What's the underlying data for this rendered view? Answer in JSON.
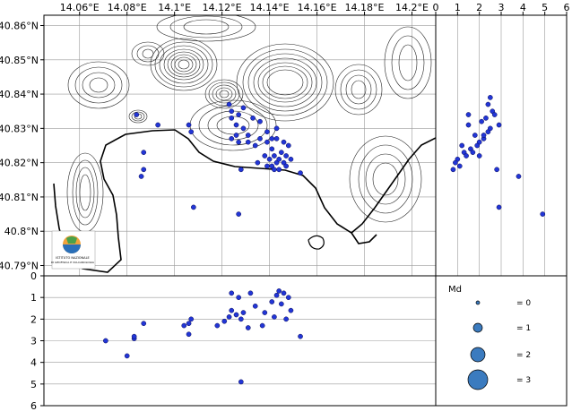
{
  "colors": {
    "marker_fill": "#2236d6",
    "marker_edge": "#0a0a55",
    "legend_fill": "#3b7bbf",
    "grid": "#9a9a9a",
    "contour": "#222222",
    "frame": "#000000"
  },
  "logo": {
    "line1": "ISTITUTO NAZIONALE",
    "line2": "DI GEOFISICA E VULCANOLOGIA"
  },
  "chart_data": [
    {
      "id": "map",
      "type": "scatter",
      "grid": true,
      "x_ticks": [
        "14.06°E",
        "14.08°E",
        "14.1°E",
        "14.12°E",
        "14.14°E",
        "14.16°E",
        "14.18°E",
        "14.2°E"
      ],
      "x_tick_values": [
        14.06,
        14.08,
        14.1,
        14.12,
        14.14,
        14.16,
        14.18,
        14.2
      ],
      "y_ticks": [
        "40.86°N",
        "40.85°N",
        "40.84°N",
        "40.83°N",
        "40.82°N",
        "40.81°N",
        "40.8°N",
        "40.79°N"
      ],
      "y_tick_values": [
        40.86,
        40.85,
        40.84,
        40.83,
        40.82,
        40.81,
        40.8,
        40.79
      ],
      "xlim": [
        14.045,
        14.21
      ],
      "ylim": [
        40.787,
        40.863
      ],
      "points": [
        {
          "lon": 14.084,
          "lat": 40.834
        },
        {
          "lon": 14.093,
          "lat": 40.831
        },
        {
          "lon": 14.087,
          "lat": 40.823
        },
        {
          "lon": 14.087,
          "lat": 40.818
        },
        {
          "lon": 14.086,
          "lat": 40.816
        },
        {
          "lon": 14.106,
          "lat": 40.831
        },
        {
          "lon": 14.107,
          "lat": 40.829
        },
        {
          "lon": 14.108,
          "lat": 40.807
        },
        {
          "lon": 14.123,
          "lat": 40.837
        },
        {
          "lon": 14.124,
          "lat": 40.835
        },
        {
          "lon": 14.124,
          "lat": 40.833
        },
        {
          "lon": 14.127,
          "lat": 40.834
        },
        {
          "lon": 14.126,
          "lat": 40.831
        },
        {
          "lon": 14.129,
          "lat": 40.83
        },
        {
          "lon": 14.126,
          "lat": 40.828
        },
        {
          "lon": 14.124,
          "lat": 40.827
        },
        {
          "lon": 14.127,
          "lat": 40.826
        },
        {
          "lon": 14.131,
          "lat": 40.828
        },
        {
          "lon": 14.133,
          "lat": 40.833
        },
        {
          "lon": 14.136,
          "lat": 40.832
        },
        {
          "lon": 14.129,
          "lat": 40.836
        },
        {
          "lon": 14.131,
          "lat": 40.826
        },
        {
          "lon": 14.134,
          "lat": 40.825
        },
        {
          "lon": 14.128,
          "lat": 40.818
        },
        {
          "lon": 14.136,
          "lat": 40.827
        },
        {
          "lon": 14.139,
          "lat": 40.829
        },
        {
          "lon": 14.139,
          "lat": 40.826
        },
        {
          "lon": 14.141,
          "lat": 40.824
        },
        {
          "lon": 14.138,
          "lat": 40.822
        },
        {
          "lon": 14.14,
          "lat": 40.821
        },
        {
          "lon": 14.142,
          "lat": 40.822
        },
        {
          "lon": 14.143,
          "lat": 40.82
        },
        {
          "lon": 14.141,
          "lat": 40.819
        },
        {
          "lon": 14.144,
          "lat": 40.818
        },
        {
          "lon": 14.146,
          "lat": 40.82
        },
        {
          "lon": 14.147,
          "lat": 40.822
        },
        {
          "lon": 14.145,
          "lat": 40.823
        },
        {
          "lon": 14.146,
          "lat": 40.826
        },
        {
          "lon": 14.143,
          "lat": 40.827
        },
        {
          "lon": 14.148,
          "lat": 40.825
        },
        {
          "lon": 14.149,
          "lat": 40.821
        },
        {
          "lon": 14.147,
          "lat": 40.819
        },
        {
          "lon": 14.142,
          "lat": 40.818
        },
        {
          "lon": 14.139,
          "lat": 40.819
        },
        {
          "lon": 14.144,
          "lat": 40.821
        },
        {
          "lon": 14.143,
          "lat": 40.83
        },
        {
          "lon": 14.141,
          "lat": 40.827
        },
        {
          "lon": 14.153,
          "lat": 40.817
        },
        {
          "lon": 14.135,
          "lat": 40.82
        },
        {
          "lon": 14.127,
          "lat": 40.805
        }
      ]
    },
    {
      "id": "lat-depth",
      "type": "scatter",
      "x_label_ticks": [
        "0",
        "1",
        "2",
        "3",
        "4",
        "5",
        "6"
      ],
      "x_tick_values": [
        0,
        1,
        2,
        3,
        4,
        5,
        6
      ],
      "xlim": [
        0,
        6
      ],
      "ylim": [
        40.787,
        40.863
      ],
      "grid": true,
      "points": [
        {
          "depth": 1.5,
          "lat": 40.834
        },
        {
          "depth": 1.5,
          "lat": 40.831
        },
        {
          "depth": 1.8,
          "lat": 40.828
        },
        {
          "depth": 1.2,
          "lat": 40.825
        },
        {
          "depth": 1.3,
          "lat": 40.823
        },
        {
          "depth": 1.0,
          "lat": 40.821
        },
        {
          "depth": 0.9,
          "lat": 40.82
        },
        {
          "depth": 1.1,
          "lat": 40.819
        },
        {
          "depth": 0.8,
          "lat": 40.818
        },
        {
          "depth": 1.4,
          "lat": 40.822
        },
        {
          "depth": 1.6,
          "lat": 40.824
        },
        {
          "depth": 2.0,
          "lat": 40.826
        },
        {
          "depth": 2.2,
          "lat": 40.827
        },
        {
          "depth": 2.4,
          "lat": 40.829
        },
        {
          "depth": 2.5,
          "lat": 40.83
        },
        {
          "depth": 2.1,
          "lat": 40.832
        },
        {
          "depth": 2.3,
          "lat": 40.833
        },
        {
          "depth": 2.6,
          "lat": 40.835
        },
        {
          "depth": 2.7,
          "lat": 40.834
        },
        {
          "depth": 2.4,
          "lat": 40.837
        },
        {
          "depth": 2.5,
          "lat": 40.839
        },
        {
          "depth": 1.9,
          "lat": 40.825
        },
        {
          "depth": 1.7,
          "lat": 40.823
        },
        {
          "depth": 2.2,
          "lat": 40.828
        },
        {
          "depth": 2.0,
          "lat": 40.822
        },
        {
          "depth": 2.9,
          "lat": 40.831
        },
        {
          "depth": 2.8,
          "lat": 40.818
        },
        {
          "depth": 3.8,
          "lat": 40.816
        },
        {
          "depth": 2.9,
          "lat": 40.807
        },
        {
          "depth": 4.9,
          "lat": 40.805
        }
      ]
    },
    {
      "id": "depth-lon",
      "type": "scatter",
      "y_ticks": [
        "0",
        "1",
        "2",
        "3",
        "4",
        "5",
        "6"
      ],
      "y_tick_values": [
        0,
        1,
        2,
        3,
        4,
        5,
        6
      ],
      "ylim": [
        0,
        6
      ],
      "xlim": [
        14.045,
        14.21
      ],
      "grid": true,
      "points": [
        {
          "lon": 14.071,
          "depth": 3.0
        },
        {
          "lon": 14.08,
          "depth": 3.7
        },
        {
          "lon": 14.083,
          "depth": 2.9
        },
        {
          "lon": 14.083,
          "depth": 2.8
        },
        {
          "lon": 14.087,
          "depth": 2.2
        },
        {
          "lon": 14.104,
          "depth": 2.3
        },
        {
          "lon": 14.106,
          "depth": 2.2
        },
        {
          "lon": 14.107,
          "depth": 2.0
        },
        {
          "lon": 14.106,
          "depth": 2.7
        },
        {
          "lon": 14.118,
          "depth": 2.3
        },
        {
          "lon": 14.121,
          "depth": 2.1
        },
        {
          "lon": 14.123,
          "depth": 1.9
        },
        {
          "lon": 14.124,
          "depth": 1.6
        },
        {
          "lon": 14.126,
          "depth": 1.8
        },
        {
          "lon": 14.128,
          "depth": 2.0
        },
        {
          "lon": 14.124,
          "depth": 0.8
        },
        {
          "lon": 14.127,
          "depth": 1.0
        },
        {
          "lon": 14.129,
          "depth": 1.7
        },
        {
          "lon": 14.131,
          "depth": 2.4
        },
        {
          "lon": 14.134,
          "depth": 1.4
        },
        {
          "lon": 14.132,
          "depth": 0.8
        },
        {
          "lon": 14.138,
          "depth": 1.7
        },
        {
          "lon": 14.141,
          "depth": 1.2
        },
        {
          "lon": 14.143,
          "depth": 0.9
        },
        {
          "lon": 14.144,
          "depth": 0.7
        },
        {
          "lon": 14.146,
          "depth": 0.8
        },
        {
          "lon": 14.148,
          "depth": 1.0
        },
        {
          "lon": 14.145,
          "depth": 1.3
        },
        {
          "lon": 14.142,
          "depth": 1.9
        },
        {
          "lon": 14.147,
          "depth": 2.0
        },
        {
          "lon": 14.149,
          "depth": 1.6
        },
        {
          "lon": 14.137,
          "depth": 2.3
        },
        {
          "lon": 14.153,
          "depth": 2.8
        },
        {
          "lon": 14.128,
          "depth": 4.9
        }
      ]
    }
  ],
  "legend": {
    "title": "Md",
    "items": [
      {
        "label": "= 0",
        "value": 0
      },
      {
        "label": "= 1",
        "value": 1
      },
      {
        "label": "= 2",
        "value": 2
      },
      {
        "label": "= 3",
        "value": 3
      }
    ]
  }
}
